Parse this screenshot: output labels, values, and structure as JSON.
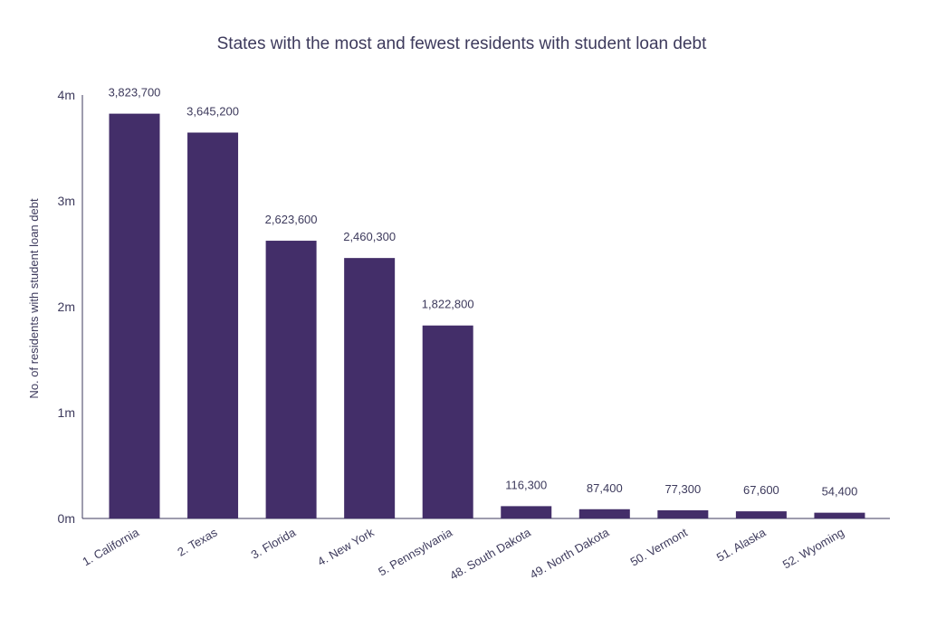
{
  "chart_data": {
    "type": "bar",
    "title": "States with the most and fewest residents with student loan debt",
    "xlabel": "",
    "ylabel": "No. of residents with student loan debt",
    "categories": [
      "1. California",
      "2. Texas",
      "3. Florida",
      "4. New York",
      "5. Pennsylvania",
      "48. South Dakota",
      "49. North Dakota",
      "50. Vermont",
      "51. Alaska",
      "52. Wyoming"
    ],
    "values": [
      3823700,
      3645200,
      2623600,
      2460300,
      1822800,
      116300,
      87400,
      77300,
      67600,
      54400
    ],
    "data_labels": [
      "3,823,700",
      "3,645,200",
      "2,623,600",
      "2,460,300",
      "1,822,800",
      "116,300",
      "87,400",
      "77,300",
      "67,600",
      "54,400"
    ],
    "yticks": [
      0,
      1000000,
      2000000,
      3000000,
      4000000
    ],
    "ytick_labels": [
      "0m",
      "1m",
      "2m",
      "3m",
      "4m"
    ],
    "ylim": [
      0,
      4000000
    ],
    "grid": false,
    "legend": "none",
    "bar_color": "#432e69"
  }
}
